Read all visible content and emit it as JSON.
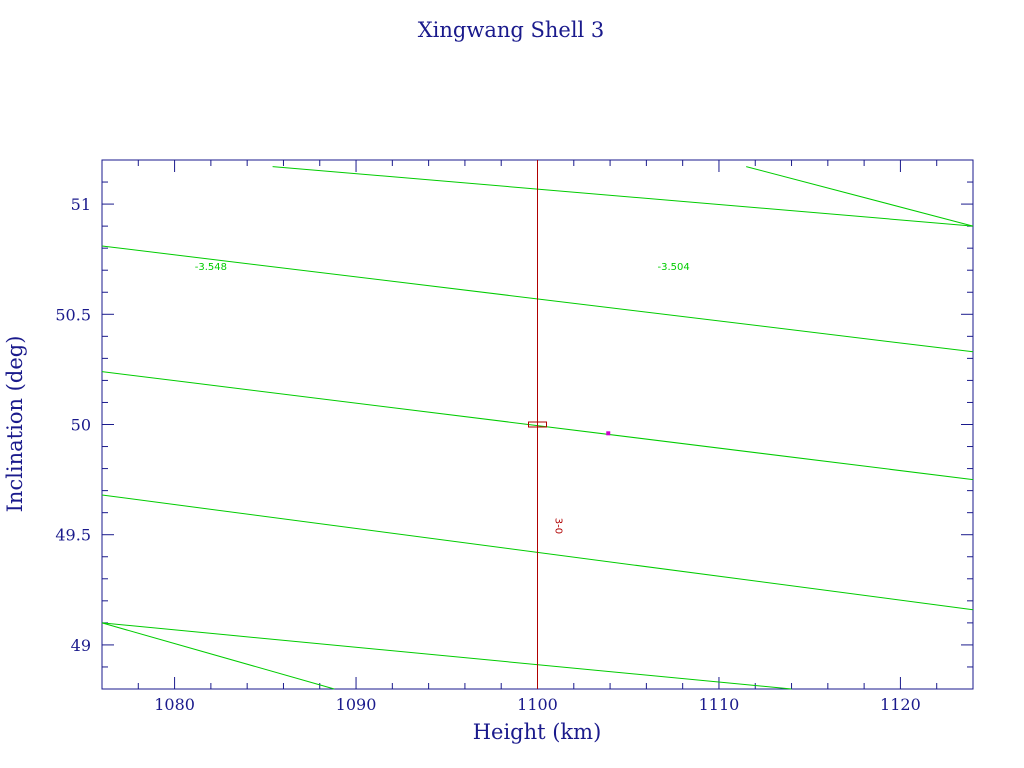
{
  "chart_data": {
    "type": "line",
    "title": "Xingwang Shell 3",
    "xlabel": "Height (km)",
    "ylabel": "Inclination (deg)",
    "xlim": [
      1076,
      1124
    ],
    "ylim": [
      48.8,
      51.2
    ],
    "x_ticks": [
      1080,
      1090,
      1100,
      1110,
      1120
    ],
    "y_ticks": [
      49,
      49.5,
      50,
      50.5,
      51
    ],
    "x_tick_labels": [
      "1080",
      "1090",
      "1100",
      "1110",
      "1120"
    ],
    "y_tick_labels": [
      "49",
      "49.5",
      "50",
      "50.5",
      "51"
    ],
    "grid": false,
    "contours": [
      {
        "x": [
          1085.4,
          1124
        ],
        "y": [
          51.17,
          50.9
        ]
      },
      {
        "x": [
          1076,
          1124
        ],
        "y": [
          50.81,
          50.33
        ]
      },
      {
        "x": [
          1076,
          1124
        ],
        "y": [
          50.24,
          49.75
        ]
      },
      {
        "x": [
          1076,
          1124
        ],
        "y": [
          49.68,
          49.16
        ]
      },
      {
        "x": [
          1076,
          1114
        ],
        "y": [
          49.1,
          48.8
        ]
      },
      {
        "x": [
          1111.5,
          1124
        ],
        "y": [
          51.17,
          50.9
        ]
      },
      {
        "x": [
          1076,
          1088.8
        ],
        "y": [
          49.1,
          48.8
        ]
      }
    ],
    "contour_labels": [
      {
        "text": "-3.548",
        "x": 1082.0,
        "y": 50.72
      },
      {
        "text": "-3.504",
        "x": 1107.5,
        "y": 50.72
      }
    ],
    "vertical_line": {
      "x": 1100,
      "color": "#b00000"
    },
    "box_marker": {
      "x": 1100,
      "y": 50.0,
      "color": "#b00000"
    },
    "vertical_marker_label": {
      "text": "3-0",
      "x": 1100.6,
      "y": 49.54
    },
    "point": {
      "x": 1103.9,
      "y": 49.96,
      "color": "#cc00cc"
    },
    "colors": {
      "axis": "#1a1a8c",
      "contour": "#00cc00"
    }
  }
}
